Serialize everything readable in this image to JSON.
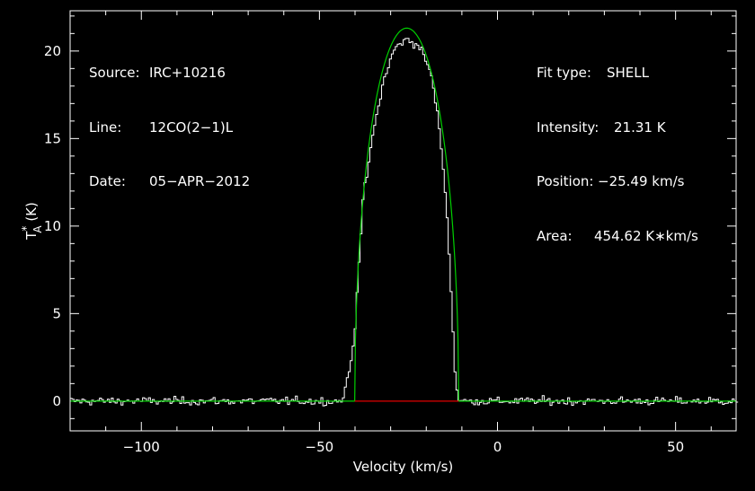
{
  "colors": {
    "background": "#000000",
    "axes": "#ffffff",
    "spectrum": "#ffffff",
    "fit": "#00d000",
    "baseline": "#e00000"
  },
  "info_left": [
    {
      "label": "Source:",
      "value": "IRC+10216"
    },
    {
      "label": "Line:",
      "value": "12CO(2−1)L"
    },
    {
      "label": "Date:",
      "value": "05−APR−2012"
    }
  ],
  "info_right": [
    {
      "label": "Fit type:",
      "value": "SHELL"
    },
    {
      "label": "Intensity:",
      "value": "21.31 K"
    },
    {
      "label": "Position:",
      "value": "−25.49 km/s"
    },
    {
      "label": "Area:",
      "value": "454.62 K∗km/s"
    }
  ],
  "chart_data": {
    "type": "line",
    "xlabel": "Velocity (km/s)",
    "ylabel": "T*A (K)",
    "xlim": [
      -120,
      67
    ],
    "ylim": [
      -1.7,
      22.3
    ],
    "x_ticks": [
      -100,
      -50,
      0,
      50
    ],
    "x_tick_labels": [
      "−100",
      "−50",
      "0",
      "50"
    ],
    "y_ticks": [
      0,
      5,
      10,
      15,
      20
    ],
    "y_tick_labels": [
      "0",
      "5",
      "10",
      "15",
      "20"
    ],
    "grid": false,
    "series": [
      {
        "kind": "spectrum",
        "x_range": [
          -120,
          67
        ],
        "channel_width": 0.55,
        "noise_rms": 0.2,
        "profile_points": [
          [
            -120,
            0
          ],
          [
            -44,
            0
          ],
          [
            -42,
            1.5
          ],
          [
            -40.5,
            3.5
          ],
          [
            -39.5,
            7
          ],
          [
            -38,
            11.5
          ],
          [
            -35,
            15.5
          ],
          [
            -32,
            18.5
          ],
          [
            -29,
            20.2
          ],
          [
            -25.5,
            20.7
          ],
          [
            -22,
            20.2
          ],
          [
            -19,
            18.8
          ],
          [
            -16.5,
            15.5
          ],
          [
            -14.5,
            11
          ],
          [
            -13,
            5
          ],
          [
            -12,
            1
          ],
          [
            -11,
            0
          ],
          [
            67,
            0
          ]
        ]
      },
      {
        "kind": "fit",
        "model": "shell",
        "center": -25.49,
        "half_width": 14.6,
        "peak": 21.31
      },
      {
        "kind": "baseline",
        "x": [
          -40.1,
          -10.9
        ],
        "y": [
          0,
          0
        ]
      }
    ]
  }
}
